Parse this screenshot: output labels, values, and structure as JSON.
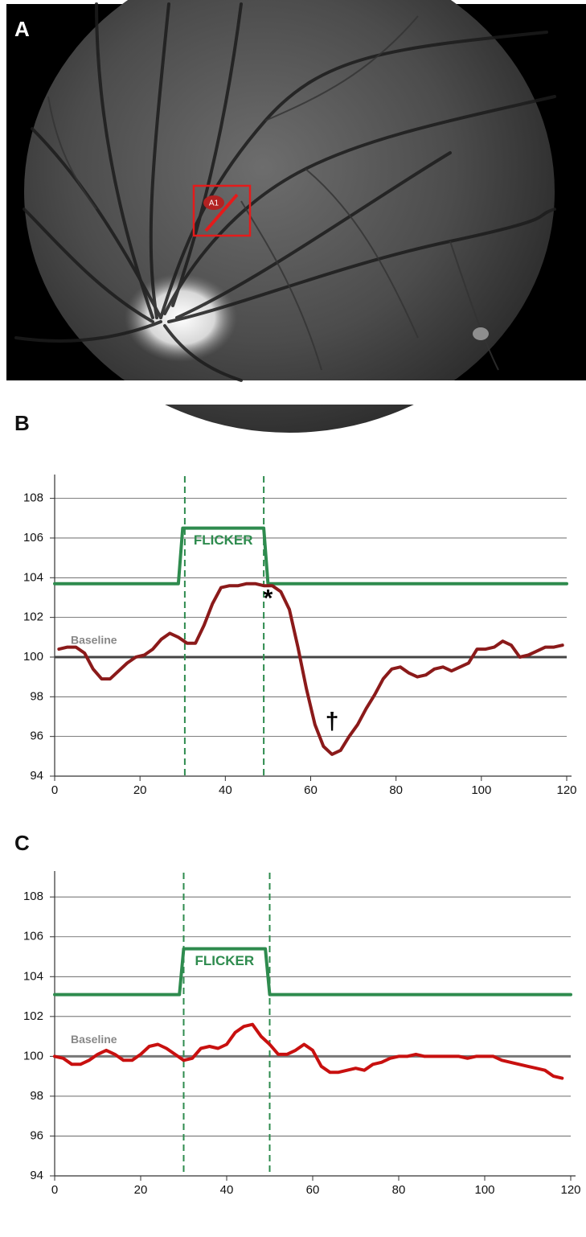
{
  "image": {
    "label": "A",
    "marker": "A1"
  },
  "chart_data": [
    {
      "type": "line",
      "label": "B",
      "xlim": [
        0,
        120
      ],
      "ylim": [
        94,
        109.2
      ],
      "xticks": [
        0,
        20,
        40,
        60,
        80,
        100,
        120
      ],
      "yticks": [
        94,
        96,
        98,
        100,
        102,
        104,
        106,
        108
      ],
      "grid": true,
      "baseline": {
        "value": 100,
        "label": "Baseline"
      },
      "vlines": [
        30.5,
        49
      ],
      "flicker_label": "FLICKER",
      "annotations": [
        {
          "text": "*",
          "x": 50,
          "y": 102.9
        },
        {
          "text": "†",
          "x": 65,
          "y": 96.7
        }
      ],
      "series": [
        {
          "color": "#2e8b4e",
          "x": [
            0,
            29,
            30,
            49,
            50,
            120
          ],
          "values": [
            103.7,
            103.7,
            106.5,
            106.5,
            103.7,
            103.7
          ]
        },
        {
          "color": "#8b1a1a",
          "x": [
            1,
            3,
            5,
            7,
            9,
            11,
            13,
            15,
            17,
            19,
            21,
            23,
            25,
            27,
            29,
            31,
            33,
            35,
            37,
            39,
            41,
            43,
            45,
            47,
            49,
            51,
            53,
            55,
            57,
            59,
            61,
            63,
            65,
            67,
            69,
            71,
            73,
            75,
            77,
            79,
            81,
            83,
            85,
            87,
            89,
            91,
            93,
            95,
            97,
            99,
            101,
            103,
            105,
            107,
            109,
            111,
            113,
            115,
            117,
            119
          ],
          "values": [
            100.4,
            100.5,
            100.5,
            100.2,
            99.4,
            98.9,
            98.9,
            99.3,
            99.7,
            100.0,
            100.1,
            100.4,
            100.9,
            101.2,
            101.0,
            100.7,
            100.7,
            101.6,
            102.7,
            103.5,
            103.6,
            103.6,
            103.7,
            103.7,
            103.6,
            103.6,
            103.3,
            102.4,
            100.5,
            98.4,
            96.6,
            95.5,
            95.1,
            95.3,
            96.0,
            96.6,
            97.4,
            98.1,
            98.9,
            99.4,
            99.5,
            99.2,
            99.0,
            99.1,
            99.4,
            99.5,
            99.3,
            99.5,
            99.7,
            100.4,
            100.4,
            100.5,
            100.8,
            100.6,
            100.0,
            100.1,
            100.3,
            100.5,
            100.5,
            100.6
          ]
        }
      ]
    },
    {
      "type": "line",
      "label": "C",
      "xlim": [
        0,
        120
      ],
      "ylim": [
        94,
        109.3
      ],
      "xticks": [
        0,
        20,
        40,
        60,
        80,
        100,
        120
      ],
      "yticks": [
        94,
        96,
        98,
        100,
        102,
        104,
        106,
        108
      ],
      "grid": true,
      "baseline": {
        "value": 100,
        "label": "Baseline"
      },
      "vlines": [
        30,
        50
      ],
      "flicker_label": "FLICKER",
      "series": [
        {
          "color": "#2e8b4e",
          "x": [
            0,
            29,
            30,
            49,
            50,
            120
          ],
          "values": [
            103.1,
            103.1,
            105.4,
            105.4,
            103.1,
            103.1
          ]
        },
        {
          "color": "#c8100f",
          "x": [
            0,
            2,
            4,
            6,
            8,
            10,
            12,
            14,
            16,
            18,
            20,
            22,
            24,
            26,
            28,
            30,
            32,
            34,
            36,
            38,
            40,
            42,
            44,
            46,
            48,
            50,
            52,
            54,
            56,
            58,
            60,
            62,
            64,
            66,
            68,
            70,
            72,
            74,
            76,
            78,
            80,
            82,
            84,
            86,
            88,
            90,
            92,
            94,
            96,
            98,
            100,
            102,
            104,
            106,
            108,
            110,
            112,
            114,
            116,
            118
          ],
          "values": [
            100.0,
            99.9,
            99.6,
            99.6,
            99.8,
            100.1,
            100.3,
            100.1,
            99.8,
            99.8,
            100.1,
            100.5,
            100.6,
            100.4,
            100.1,
            99.8,
            99.9,
            100.4,
            100.5,
            100.4,
            100.6,
            101.2,
            101.5,
            101.6,
            101.0,
            100.6,
            100.1,
            100.1,
            100.3,
            100.6,
            100.3,
            99.5,
            99.2,
            99.2,
            99.3,
            99.4,
            99.3,
            99.6,
            99.7,
            99.9,
            100.0,
            100.0,
            100.1,
            100.0,
            100.0,
            100.0,
            100.0,
            100.0,
            99.9,
            100.0,
            100.0,
            100.0,
            99.8,
            99.7,
            99.6,
            99.5,
            99.4,
            99.3,
            99.0,
            98.9
          ]
        }
      ]
    }
  ]
}
